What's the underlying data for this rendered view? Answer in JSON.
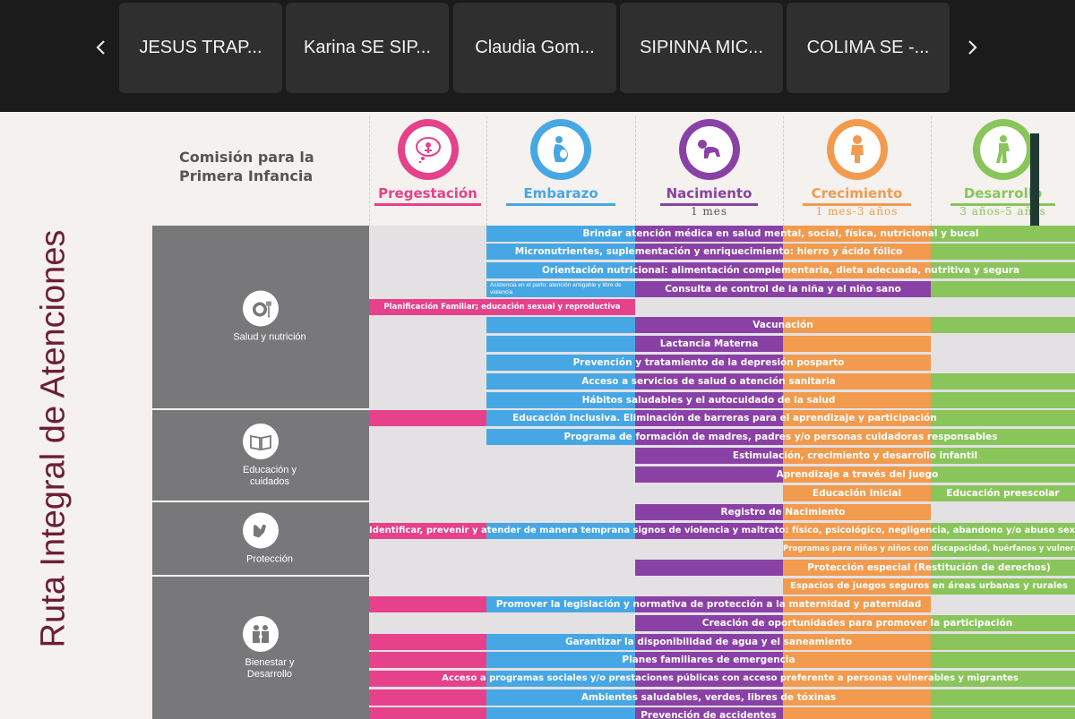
{
  "call": {
    "participants": [
      {
        "name": "JESUS TRAP..."
      },
      {
        "name": "Karina SE SIP..."
      },
      {
        "name": "Claudia Gom..."
      },
      {
        "name": "SIPINNA MIC..."
      },
      {
        "name": "COLIMA SE -..."
      }
    ]
  },
  "slide": {
    "title": "Ruta Integral de Atenciones",
    "header": "Comisión para la Primera Infancia",
    "colors": {
      "pink": "#e6418b",
      "blue": "#47a7e4",
      "purple": "#8a41a5",
      "orange": "#f29b4e",
      "green": "#89c55a",
      "gray": "#78787a",
      "title": "#6b1f33"
    },
    "stages": [
      {
        "label": "Pregestación",
        "sub": "",
        "color": "#e6418b",
        "icon": "baby-thought-icon"
      },
      {
        "label": "Embarazo",
        "sub": "",
        "color": "#47a7e4",
        "icon": "pregnancy-icon"
      },
      {
        "label": "Nacimiento",
        "sub": "1 mes",
        "color": "#8a41a5",
        "icon": "crawling-baby-icon"
      },
      {
        "label": "Crecimiento",
        "sub": "1 mes-3 años",
        "color": "#f29b4e",
        "icon": "toddler-icon"
      },
      {
        "label": "Desarrollo",
        "sub": "3 años-5 años",
        "color": "#89c55a",
        "icon": "child-icon"
      }
    ],
    "categories": [
      {
        "label": "Salud y nutrición",
        "icon": "plate-icon"
      },
      {
        "label": "Educación y cuidados",
        "icon": "book-icon"
      },
      {
        "label": "Protección",
        "icon": "hands-icon"
      },
      {
        "label": "Bienestar y Desarrollo",
        "icon": "family-icon"
      }
    ],
    "rows": [
      {
        "text": "Brindar atención médica en salud mental, social, física, nutricional y bucal"
      },
      {
        "text": "Micronutrientes, suplementación y enriquecimiento: hierro y ácido fólico"
      },
      {
        "text": "Orientación nutricional: alimentación complementaria, dieta adecuada, nutritiva y segura"
      },
      {
        "text": "Consulta de control de la niña y el niño sano",
        "note": "Asistencia en el parto: atención amigable y libre de violencia"
      },
      {
        "text": "Planificación Familiar; educación sexual y reproductiva"
      },
      {
        "text": "Vacunación"
      },
      {
        "text": "Lactancia Materna"
      },
      {
        "text": "Prevención y tratamiento de la depresión posparto"
      },
      {
        "text": "Acceso a servicios de salud o atención sanitaria"
      },
      {
        "text": "Hábitos saludables y el autocuidado de la salud"
      },
      {
        "text": "Educación Inclusiva. Eliminación de barreras para el aprendizaje y participación"
      },
      {
        "text": "Programa de formación de madres, padres y/o personas cuidadoras responsables"
      },
      {
        "text": "Estimulación, crecimiento y desarrollo infantil"
      },
      {
        "text": "Aprendizaje a través del juego"
      },
      {
        "text": "Educación Inicial",
        "text2": "Educación preescolar"
      },
      {
        "text": "Registro de Nacimiento"
      },
      {
        "text": "Identificar, prevenir y atender de manera temprana signos de violencia y maltrato: físico, psicológico, negligencia, abandono y/o abuso sexual"
      },
      {
        "text": "Programas para niñas y niños con discapacidad, huérfanos y vulnerables"
      },
      {
        "text": "Protección especial (Restitución de derechos)"
      },
      {
        "text": "Espacios de juegos seguros en áreas urbanas y rurales"
      },
      {
        "text": "Promover la legislación y normativa de protección a la maternidad y paternidad"
      },
      {
        "text": "Creación de oportunidades para promover la participación"
      },
      {
        "text": "Garantizar la disponibilidad de agua y el saneamiento"
      },
      {
        "text": "Planes familiares de emergencia"
      },
      {
        "text": "Acceso a programas sociales y/o prestaciones públicas con acceso preferente a personas vulnerables y migrantes"
      },
      {
        "text": "Ambientes saludables, verdes, libres de tóxinas"
      },
      {
        "text": "Prevención de accidentes"
      }
    ]
  }
}
